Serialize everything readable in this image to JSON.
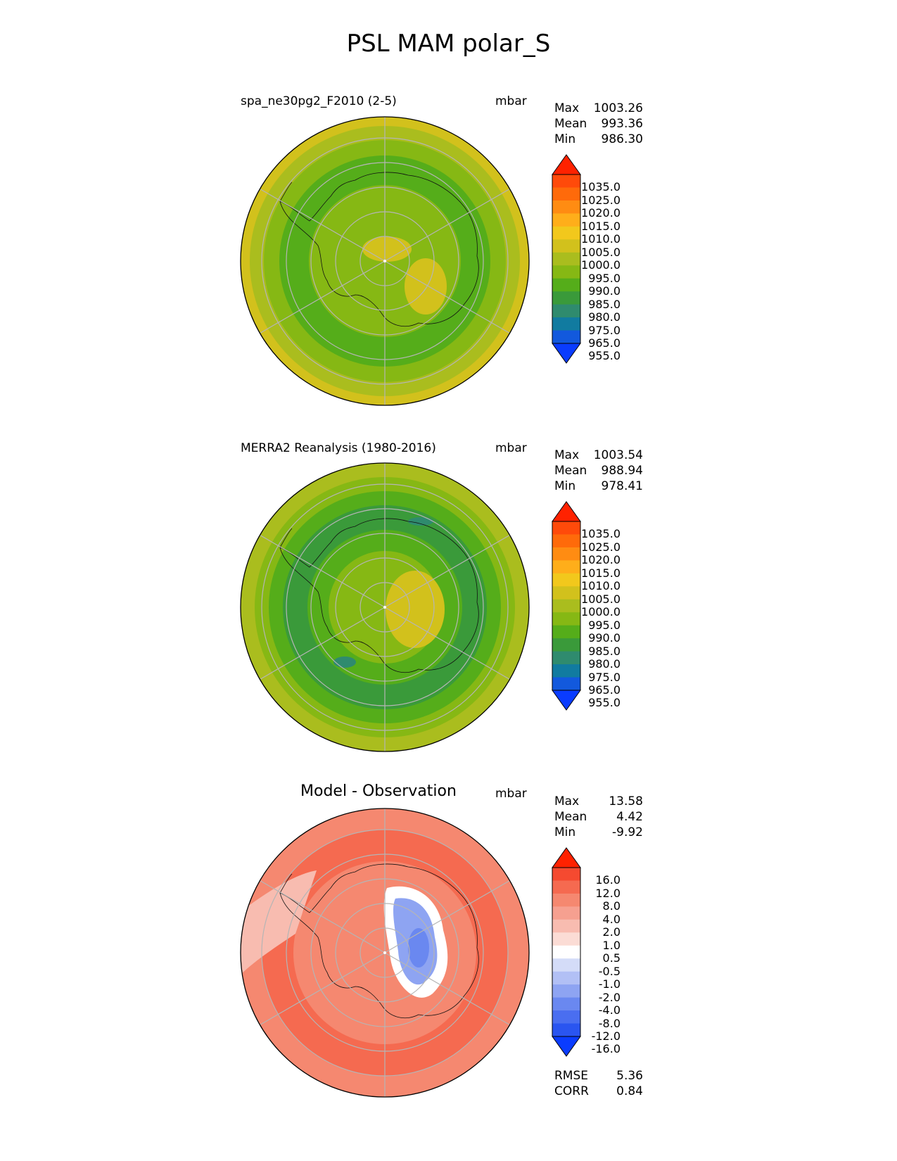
{
  "title": "PSL MAM polar_S",
  "panels": [
    {
      "title": "spa_ne30pg2_F2010 (2-5)",
      "units": "mbar",
      "stats": [
        {
          "label": "Max",
          "value": "1003.26"
        },
        {
          "label": "Mean",
          "value": "993.36"
        },
        {
          "label": "Min",
          "value": "986.30"
        }
      ],
      "colorbar_labels": [
        "1035.0",
        "1025.0",
        "1020.0",
        "1015.0",
        "1010.0",
        "1005.0",
        "1000.0",
        "995.0",
        "990.0",
        "985.0",
        "980.0",
        "975.0",
        "965.0",
        "955.0"
      ]
    },
    {
      "title": "MERRA2 Reanalysis (1980-2016)",
      "units": "mbar",
      "stats": [
        {
          "label": "Max",
          "value": "1003.54"
        },
        {
          "label": "Mean",
          "value": "988.94"
        },
        {
          "label": "Min",
          "value": "978.41"
        }
      ],
      "colorbar_labels": [
        "1035.0",
        "1025.0",
        "1020.0",
        "1015.0",
        "1010.0",
        "1005.0",
        "1000.0",
        "995.0",
        "990.0",
        "985.0",
        "980.0",
        "975.0",
        "965.0",
        "955.0"
      ]
    },
    {
      "title": "Model - Observation",
      "units": "mbar",
      "stats": [
        {
          "label": "Max",
          "value": "13.58"
        },
        {
          "label": "Mean",
          "value": "4.42"
        },
        {
          "label": "Min",
          "value": "-9.92"
        }
      ],
      "colorbar_labels": [
        "16.0",
        "12.0",
        "8.0",
        "4.0",
        "2.0",
        "1.0",
        "0.5",
        "-0.5",
        "-1.0",
        "-2.0",
        "-4.0",
        "-8.0",
        "-12.0",
        "-16.0"
      ],
      "metrics": [
        {
          "label": "RMSE",
          "value": "5.36"
        },
        {
          "label": "CORR",
          "value": "0.84"
        }
      ]
    }
  ],
  "chart_data": [
    {
      "type": "heatmap",
      "title": "spa_ne30pg2_F2010 (2-5)",
      "projection": "south polar stereographic",
      "units": "mbar",
      "levels": [
        955,
        965,
        975,
        980,
        985,
        990,
        995,
        1000,
        1005,
        1010,
        1015,
        1020,
        1025,
        1035
      ],
      "colors": [
        "#0a3cff",
        "#1259dd",
        "#117ba0",
        "#2f8b6e",
        "#3a9a3a",
        "#55ad1a",
        "#86b814",
        "#aabd1e",
        "#d2c11c",
        "#f2c81c",
        "#ffae1a",
        "#ff8c12",
        "#ff6a0a",
        "#ff4a0a",
        "#ff2200"
      ],
      "approx_fields": {
        "ring_60S": 990,
        "ring_50S": 995,
        "outer_edge": 1002,
        "interior": 997,
        "east_antarctic_high": 1002
      },
      "summary": {
        "max": 1003.26,
        "mean": 993.36,
        "min": 986.3
      }
    },
    {
      "type": "heatmap",
      "title": "MERRA2 Reanalysis (1980-2016)",
      "projection": "south polar stereographic",
      "units": "mbar",
      "levels": [
        955,
        965,
        975,
        980,
        985,
        990,
        995,
        1000,
        1005,
        1010,
        1015,
        1020,
        1025,
        1035
      ],
      "colors": [
        "#0a3cff",
        "#1259dd",
        "#117ba0",
        "#2f8b6e",
        "#3a9a3a",
        "#55ad1a",
        "#86b814",
        "#aabd1e",
        "#d2c11c",
        "#f2c81c",
        "#ffae1a",
        "#ff8c12",
        "#ff6a0a",
        "#ff4a0a",
        "#ff2200"
      ],
      "approx_fields": {
        "ring_60S": 985,
        "ring_50S": 990,
        "outer_edge": 1000,
        "interior": 995,
        "east_antarctic_high": 1003
      },
      "summary": {
        "max": 1003.54,
        "mean": 988.94,
        "min": 978.41
      }
    },
    {
      "type": "heatmap",
      "title": "Model - Observation",
      "projection": "south polar stereographic",
      "units": "mbar",
      "levels": [
        -16,
        -12,
        -8,
        -4,
        -2,
        -1,
        -0.5,
        0.5,
        1,
        2,
        4,
        8,
        12,
        16
      ],
      "colors": [
        "#0a3cff",
        "#2a55f0",
        "#4a6ef0",
        "#6a88f0",
        "#8ea4f2",
        "#b2c0f5",
        "#d4dcf8",
        "#ffffff",
        "#fbdcd5",
        "#f8bcb0",
        "#f6a090",
        "#f58870",
        "#f56a50",
        "#f54a30",
        "#ff2200"
      ],
      "approx_fields": {
        "ocean": 6,
        "ring_60S": 7,
        "east_antarctic_low": -6,
        "pacific_edge": -1
      },
      "summary": {
        "max": 13.58,
        "mean": 4.42,
        "min": -9.92,
        "rmse": 5.36,
        "corr": 0.84
      }
    }
  ]
}
